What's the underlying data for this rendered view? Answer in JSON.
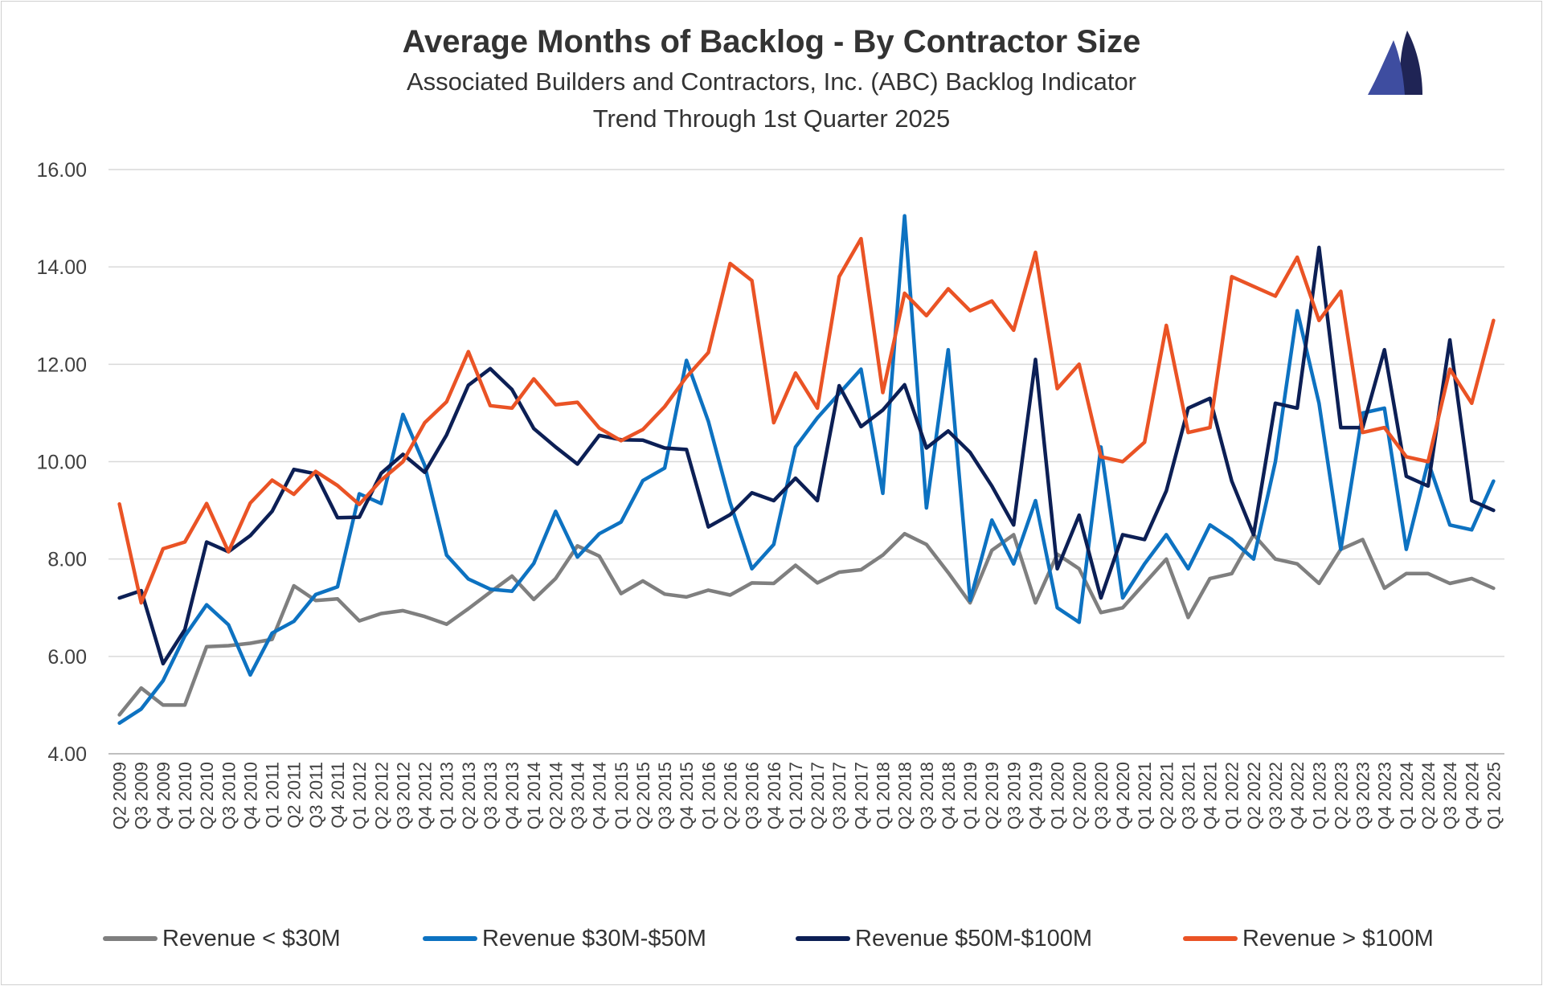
{
  "chart_data": {
    "type": "line",
    "title": "Average Months of Backlog - By Contractor Size",
    "subtitle": "Associated Builders and Contractors, Inc. (ABC) Backlog Indicator",
    "subtitle2": "Trend Through 1st Quarter 2025",
    "xlabel": "",
    "ylabel": "",
    "ylim": [
      4,
      16
    ],
    "yticks": [
      "4.00",
      "6.00",
      "8.00",
      "10.00",
      "12.00",
      "14.00",
      "16.00"
    ],
    "grid": true,
    "legend_position": "bottom",
    "categories": [
      "Q2 2009",
      "Q3 2009",
      "Q4 2009",
      "Q1 2010",
      "Q2 2010",
      "Q3 2010",
      "Q4 2010",
      "Q1 2011",
      "Q2 2011",
      "Q3 2011",
      "Q4 2011",
      "Q1 2012",
      "Q2 2012",
      "Q3 2012",
      "Q4 2012",
      "Q1 2013",
      "Q2 2013",
      "Q3 2013",
      "Q4 2013",
      "Q1 2014",
      "Q2 2014",
      "Q3 2014",
      "Q4 2014",
      "Q1 2015",
      "Q2 2015",
      "Q3 2015",
      "Q4 2015",
      "Q1 2016",
      "Q2 2016",
      "Q3 2016",
      "Q4 2016",
      "Q1 2017",
      "Q2 2017",
      "Q3 2017",
      "Q4 2017",
      "Q1 2018",
      "Q2 2018",
      "Q3 2018",
      "Q4 2018",
      "Q1 2019",
      "Q2 2019",
      "Q3 2019",
      "Q4 2019",
      "Q1 2020",
      "Q2 2020",
      "Q3 2020",
      "Q4 2020",
      "Q1 2021",
      "Q2 2021",
      "Q3 2021",
      "Q4 2021",
      "Q1 2022",
      "Q2 2022",
      "Q3 2022",
      "Q4 2022",
      "Q1 2023",
      "Q2 2023",
      "Q3 2023",
      "Q4 2023",
      "Q1 2024",
      "Q2 2024",
      "Q3 2024",
      "Q4 2024",
      "Q1 2025"
    ],
    "series": [
      {
        "name": "Revenue < $30M",
        "color": "#7f7f7f",
        "values": [
          4.8,
          5.35,
          5.0,
          5.0,
          6.2,
          6.22,
          6.27,
          6.35,
          7.45,
          7.15,
          7.18,
          6.73,
          6.88,
          6.94,
          6.82,
          6.66,
          6.98,
          7.32,
          7.65,
          7.17,
          7.6,
          8.27,
          8.06,
          7.29,
          7.55,
          7.28,
          7.22,
          7.36,
          7.26,
          7.51,
          7.5,
          7.87,
          7.51,
          7.73,
          7.78,
          8.08,
          8.52,
          8.3,
          7.72,
          7.1,
          8.18,
          8.5,
          7.1,
          8.1,
          7.8,
          6.9,
          7.0,
          7.5,
          8.0,
          6.8,
          7.6,
          7.7,
          8.5,
          8.0,
          7.9,
          7.5,
          8.2,
          8.4,
          7.4,
          7.7,
          7.7,
          7.5,
          7.6,
          7.4
        ]
      },
      {
        "name": "Revenue $30M-$50M",
        "color": "#0d72c1",
        "values": [
          4.63,
          4.92,
          5.5,
          6.42,
          7.06,
          6.65,
          5.62,
          6.48,
          6.72,
          7.27,
          7.43,
          9.34,
          9.14,
          10.97,
          9.92,
          8.08,
          7.59,
          7.38,
          7.34,
          7.91,
          8.98,
          8.04,
          8.52,
          8.76,
          9.61,
          9.87,
          12.08,
          10.83,
          9.16,
          7.8,
          8.3,
          10.3,
          10.9,
          11.4,
          11.9,
          9.35,
          15.05,
          9.05,
          12.3,
          7.15,
          8.8,
          7.9,
          9.2,
          7.0,
          6.7,
          10.3,
          7.2,
          7.9,
          8.5,
          7.8,
          8.7,
          8.4,
          8.0,
          10.0,
          13.1,
          11.2,
          8.2,
          11.0,
          11.1,
          8.2,
          10.0,
          8.7,
          8.6,
          9.6
        ]
      },
      {
        "name": "Revenue $50M-$100M",
        "color": "#0c1f55",
        "values": [
          7.2,
          7.35,
          5.85,
          6.55,
          8.35,
          8.15,
          8.48,
          8.98,
          9.84,
          9.75,
          8.85,
          8.86,
          9.76,
          10.15,
          9.78,
          10.55,
          11.57,
          11.91,
          11.48,
          10.68,
          10.3,
          9.95,
          10.54,
          10.45,
          10.44,
          10.28,
          10.25,
          8.66,
          8.91,
          9.36,
          9.2,
          9.66,
          9.2,
          11.56,
          10.72,
          11.06,
          11.58,
          10.28,
          10.63,
          10.19,
          9.5,
          8.7,
          12.1,
          7.8,
          8.9,
          7.2,
          8.5,
          8.4,
          9.4,
          11.1,
          11.3,
          9.6,
          8.5,
          11.2,
          11.1,
          14.4,
          10.7,
          10.7,
          12.3,
          9.7,
          9.5,
          12.5,
          9.2,
          9.0
        ]
      },
      {
        "name": "Revenue > $100M",
        "color": "#ea5325",
        "values": [
          9.13,
          7.1,
          8.21,
          8.35,
          9.14,
          8.15,
          9.15,
          9.62,
          9.33,
          9.8,
          9.51,
          9.12,
          9.62,
          10.0,
          10.8,
          11.23,
          12.26,
          11.15,
          11.1,
          11.7,
          11.17,
          11.22,
          10.69,
          10.43,
          10.66,
          11.13,
          11.74,
          12.24,
          14.07,
          13.72,
          10.8,
          11.82,
          11.1,
          13.8,
          14.58,
          11.42,
          13.46,
          13.0,
          13.55,
          13.1,
          13.3,
          12.7,
          14.3,
          11.5,
          12.0,
          10.1,
          10.0,
          10.4,
          12.8,
          10.6,
          10.7,
          13.8,
          13.6,
          13.4,
          14.2,
          12.9,
          13.5,
          10.6,
          10.7,
          10.1,
          10.0,
          11.9,
          11.2,
          12.9
        ]
      }
    ]
  },
  "logo": {
    "dark_sail_color": "#1f2455",
    "light_sail_color": "#3e4da0"
  }
}
